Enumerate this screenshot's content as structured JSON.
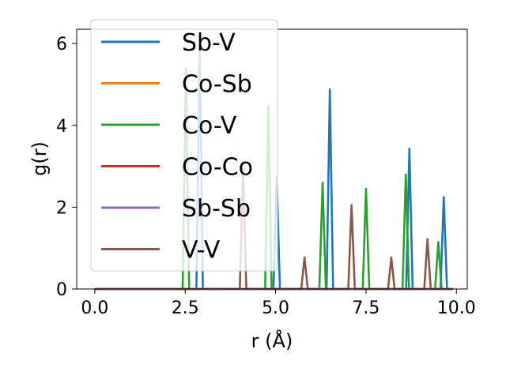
{
  "chart_data": {
    "type": "line",
    "xlabel": "r (Å)",
    "ylabel": "g(r)",
    "xlim": [
      -0.5,
      10.3
    ],
    "ylim": [
      0,
      6.35
    ],
    "xticks": [
      0.0,
      2.5,
      5.0,
      7.5,
      10.0
    ],
    "xtick_labels": [
      "0.0",
      "2.5",
      "5.0",
      "7.5",
      "10.0"
    ],
    "yticks": [
      0,
      2,
      4,
      6
    ],
    "ytick_labels": [
      "0",
      "2",
      "4",
      "6"
    ],
    "legend_position": "top-left",
    "peak_half_width": 0.09,
    "x_range": [
      0,
      9.9
    ],
    "series": [
      {
        "name": "Sb-V",
        "color": "#1f77b4",
        "peaks": [
          [
            2.9,
            5.95
          ],
          [
            5.03,
            2.75
          ],
          [
            6.5,
            4.88
          ],
          [
            8.7,
            3.43
          ],
          [
            9.65,
            2.25
          ]
        ]
      },
      {
        "name": "Co-Sb",
        "color": "#ff7f0e",
        "peaks": []
      },
      {
        "name": "Co-V",
        "color": "#2ca02c",
        "peaks": [
          [
            2.52,
            5.4
          ],
          [
            4.8,
            4.47
          ],
          [
            6.3,
            2.6
          ],
          [
            7.5,
            2.45
          ],
          [
            8.6,
            2.8
          ],
          [
            9.5,
            1.15
          ]
        ]
      },
      {
        "name": "Co-Co",
        "color": "#d62728",
        "peaks": []
      },
      {
        "name": "Sb-Sb",
        "color": "#9467bd",
        "peaks": []
      },
      {
        "name": "V-V",
        "color": "#8c564b",
        "peaks": [
          [
            4.1,
            2.95
          ],
          [
            5.8,
            0.77
          ],
          [
            7.1,
            2.05
          ],
          [
            8.2,
            0.77
          ],
          [
            9.2,
            1.22
          ]
        ]
      }
    ]
  }
}
